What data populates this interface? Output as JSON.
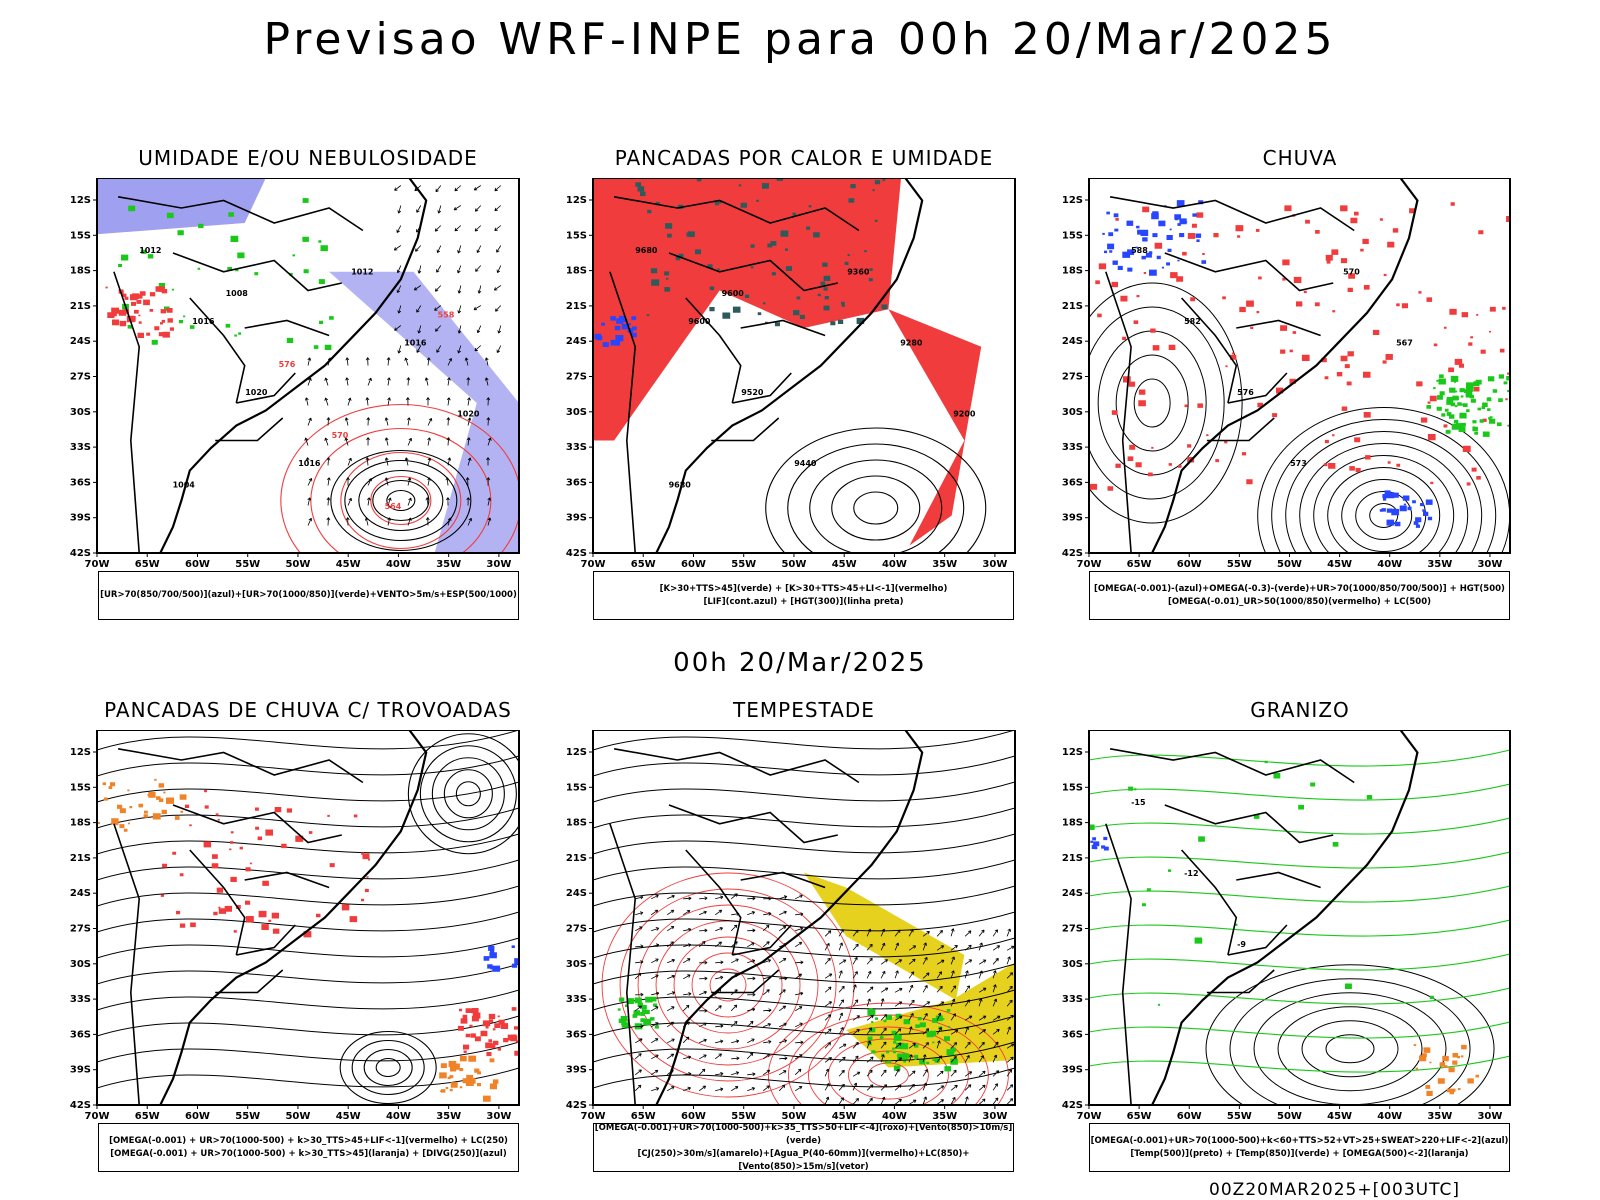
{
  "title": "Previsao WRF-INPE  para 00h 20/Mar/2025",
  "mid_title": "00h 20/Mar/2025",
  "footer": "00Z20MAR2025+[003UTC]",
  "axes": {
    "lat_labels": [
      "12S",
      "15S",
      "18S",
      "21S",
      "24S",
      "27S",
      "30S",
      "33S",
      "36S",
      "39S",
      "42S"
    ],
    "lon_labels": [
      "70W",
      "65W",
      "60W",
      "55W",
      "50W",
      "45W",
      "40W",
      "35W",
      "30W"
    ]
  },
  "panels": [
    {
      "title": "UMIDADE E/OU NEBULOSIDADE",
      "legend": [
        "[UR>70(850/700/500)](azul)+[UR>70(1000/850)](verde)+VENTO>5m/s+ESP(500/1000)"
      ],
      "labels": [
        "1012",
        "1016",
        "1020",
        "1016",
        "1012",
        "1016",
        "1020",
        "1004",
        "1008",
        "576",
        "570",
        "564",
        "558"
      ]
    },
    {
      "title": "PANCADAS POR CALOR E UMIDADE",
      "legend": [
        "[K>30+TTS>45](verde)  +  [K>30+TTS>45+LI<-1](vermelho)",
        "[LIF](cont.azul)  +  [HGT(300)](linha preta)"
      ],
      "labels": [
        "9680",
        "9600",
        "9520",
        "9440",
        "9360",
        "9280",
        "9200",
        "9680",
        "9600"
      ]
    },
    {
      "title": "CHUVA",
      "legend": [
        "[OMEGA(-0.001)-(azul)+OMEGA(-0.3)-(verde)+UR>70(1000/850/700/500)]  +  HGT(500)",
        "[OMEGA(-0.01)_UR>50(1000/850)(vermelho)  +  LC(500)"
      ],
      "labels": [
        "588",
        "582",
        "576",
        "573",
        "570",
        "567"
      ]
    },
    {
      "title": "PANCADAS DE CHUVA C/ TROVOADAS",
      "legend": [
        "[OMEGA(-0.001)  +  UR>70(1000-500)  +  k>30_TTS>45+LIF<-1](vermelho)  +  LC(250)",
        "[OMEGA(-0.001)  +  UR>70(1000-500)  +  k>30_TTS>45](laranja)  +  [DIVG(250)](azul)"
      ],
      "labels": []
    },
    {
      "title": "TEMPESTADE",
      "legend": [
        "[OMEGA(-0.001)+UR>70(1000-500)+k>35_TTS>50+LIF<-4](roxo)+[Vento(850)>10m/s](verde)",
        "[CJ(250)>30m/s](amarelo)+[Agua_P(40-60mm)](vermelho)+LC(850)+[Vento(850)>15m/s](vetor)"
      ],
      "labels": []
    },
    {
      "title": "GRANIZO",
      "legend": [
        "[OMEGA(-0.001)+UR>70(1000-500)+k<60+TTS>52+VT>25+SWEAT>220+LIF<-2](azul)",
        "[Temp(500)](preto)  +  [Temp(850)](verde)  +  [OMEGA(500)<-2](laranja)"
      ],
      "labels": [
        "-15",
        "-12",
        "-9"
      ]
    }
  ],
  "colors": {
    "red": "#f03c3c",
    "green": "#19c819",
    "blue": "#2846ff",
    "lightblue": "#a0a0f0",
    "teal": "#2d5a5a",
    "yellow": "#e6d21e",
    "orange": "#f08228"
  }
}
